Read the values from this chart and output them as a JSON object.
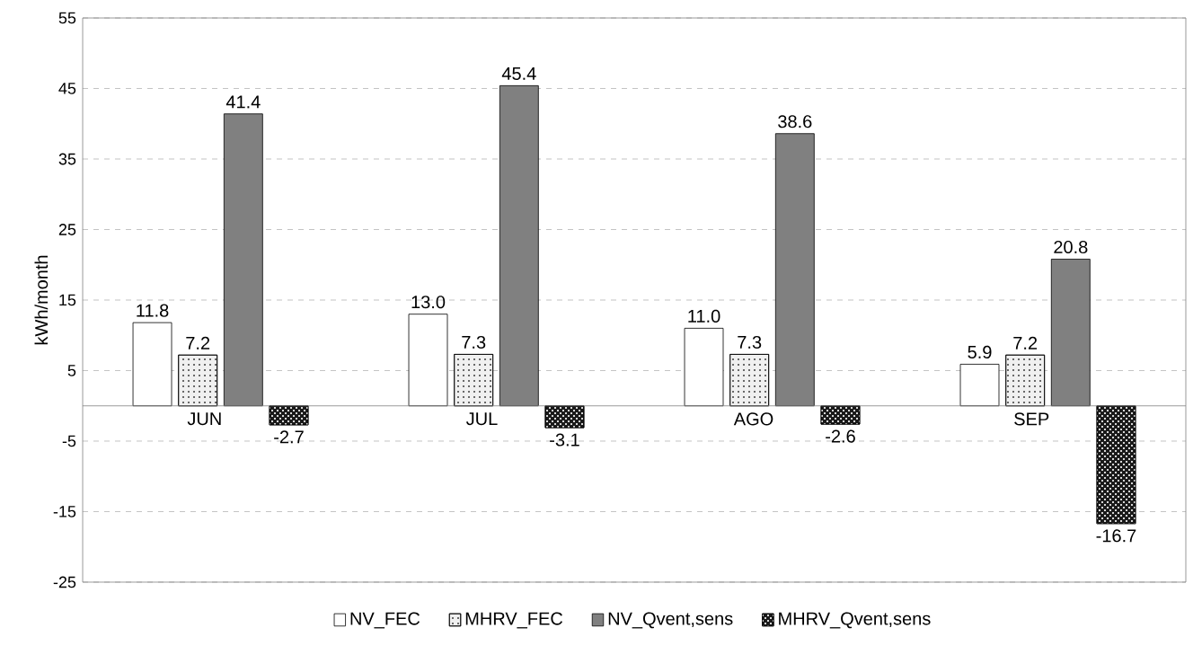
{
  "chart_data": {
    "type": "bar",
    "ylabel": "kWh/month",
    "categories": [
      "JUN",
      "JUL",
      "AGO",
      "SEP"
    ],
    "series": [
      {
        "name": "NV_FEC",
        "color": "#ffffff",
        "values": [
          11.8,
          13.0,
          11.0,
          5.9
        ],
        "value_labels": [
          "11.8",
          "13.0",
          "11.0",
          "5.9"
        ]
      },
      {
        "name": "MHRV_FEC",
        "color": "#f0f0f0",
        "values": [
          7.2,
          7.3,
          7.3,
          7.2
        ],
        "value_labels": [
          "7.2",
          "7.3",
          "7.3",
          "7.2"
        ]
      },
      {
        "name": "NV_Qvent,sens",
        "color": "#808080",
        "values": [
          41.4,
          45.4,
          38.6,
          20.8
        ],
        "value_labels": [
          "41.4",
          "45.4",
          "38.6",
          "20.8"
        ]
      },
      {
        "name": "MHRV_Qvent,sens",
        "color": "#1a1a1a",
        "values": [
          -2.7,
          -3.1,
          -2.6,
          -16.7
        ],
        "value_labels": [
          "-2.7",
          "-3.1",
          "-2.6",
          "-16.7"
        ]
      }
    ],
    "ylim": [
      -25,
      55
    ],
    "yticks": [
      -25,
      -15,
      -5,
      5,
      15,
      25,
      35,
      45,
      55
    ],
    "grid": "y",
    "legend": "bottom"
  }
}
